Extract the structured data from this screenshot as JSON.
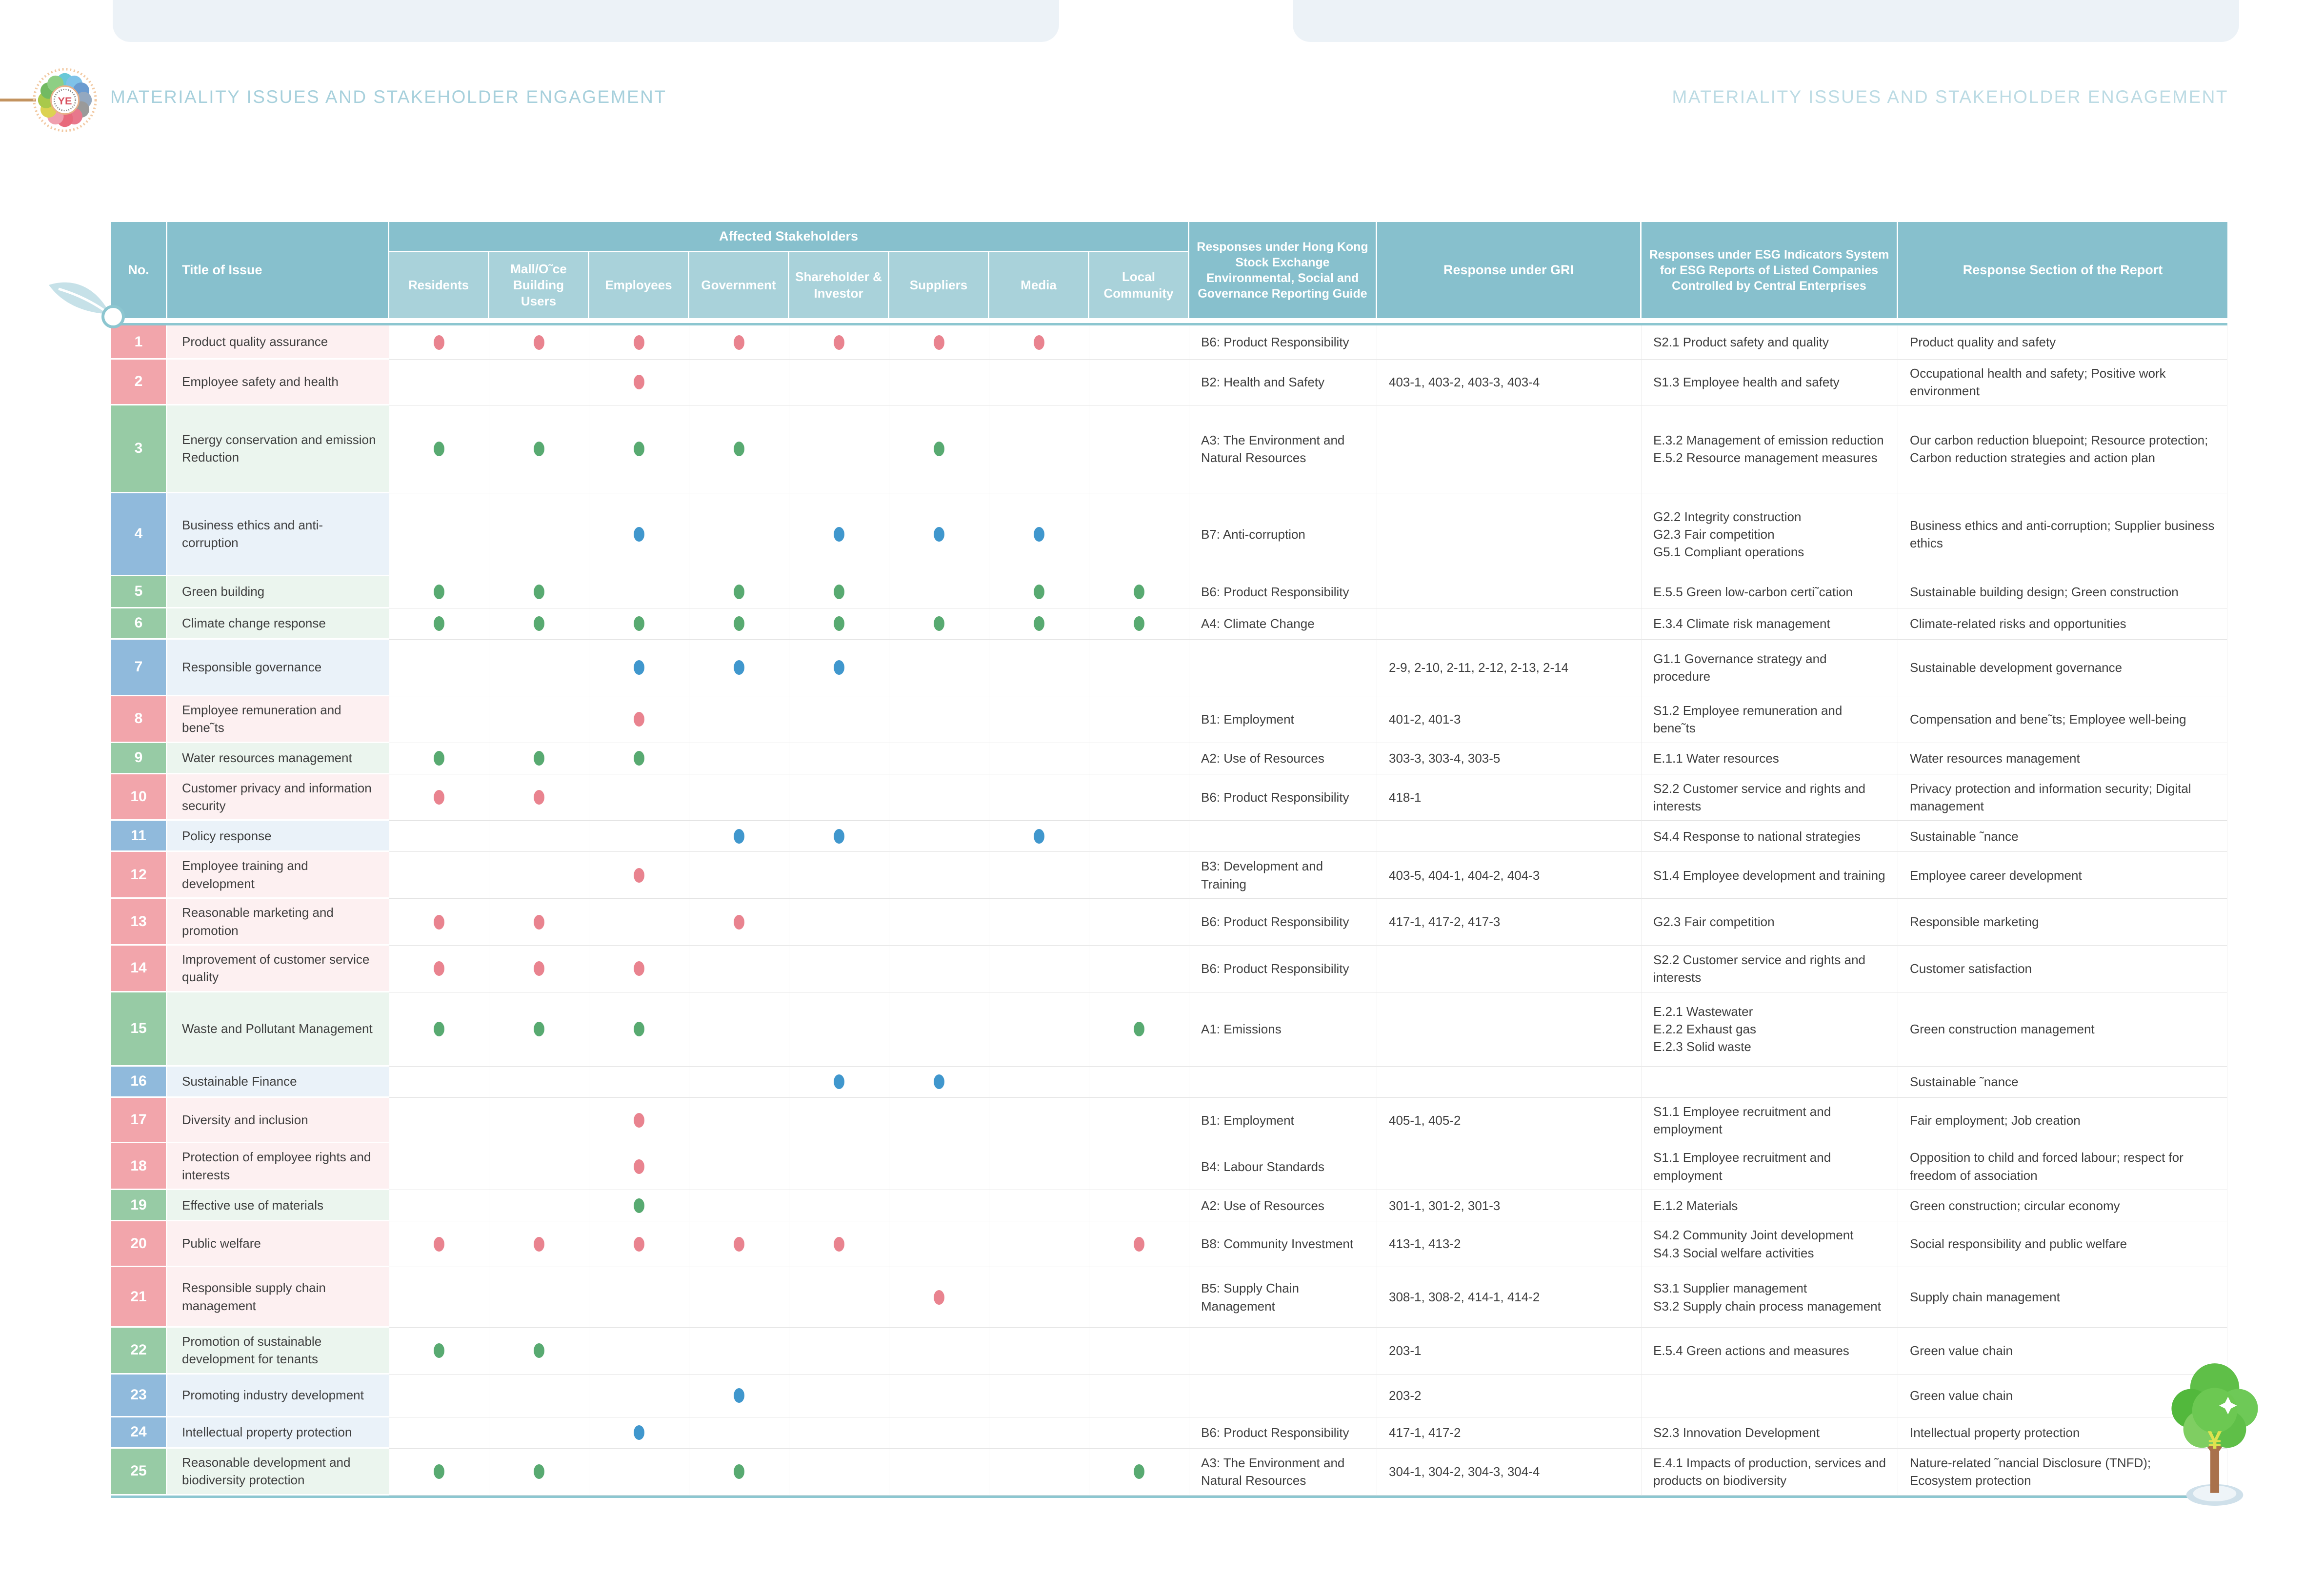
{
  "page": {
    "header_title_left": "MATERIALITY ISSUES AND STAKEHOLDER ENGAGEMENT",
    "header_title_right": "MATERIALITY ISSUES AND STAKEHOLDER ENGAGEMENT"
  },
  "colors": {
    "header_teal": "#87c0cd",
    "subheader_teal": "#a9d2da",
    "rule_teal": "#8cc6d0",
    "red_row": "#f2a5ab",
    "green_row": "#97cba5",
    "blue_row": "#90badc",
    "red_dot": "#e9838f",
    "green_dot": "#58aa71",
    "blue_dot": "#4097cd",
    "title_text": "#a7d0dc",
    "top_card_bg": "#ecf2f7",
    "brand_line": "#c3935f"
  },
  "icons": {
    "flower": "flower-logo-icon",
    "leaf": "leaf-icon",
    "tree": "tree-icon",
    "dot": "stakeholder-dot-icon"
  },
  "table": {
    "headers": {
      "no": "No.",
      "title": "Title of Issue",
      "stakeholders_group": "Affected Stakeholders",
      "stakeholders": [
        "Residents",
        "Mall/O˜ce Building Users",
        "Employees",
        "Government",
        "Shareholder & Investor",
        "Suppliers",
        "Media",
        "Local Community"
      ],
      "hkex": "Responses under Hong Kong Stock Exchange Environmental, Social and Governance Reporting Guide",
      "gri": "Response under GRI",
      "esg": "Responses under ESG Indicators System for ESG Reports of Listed Companies Controlled by Central Enterprises",
      "section": "Response Section of the Report"
    },
    "rows": [
      {
        "no": "1",
        "color": "red",
        "h": 70,
        "title": "Product quality assurance",
        "dots": [
          1,
          1,
          1,
          1,
          1,
          1,
          1,
          0
        ],
        "hkex": "B6: Product Responsibility",
        "gri": "",
        "esg": "S2.1 Product safety and quality",
        "section": "Product quality and safety"
      },
      {
        "no": "2",
        "color": "red",
        "h": 88,
        "title": "Employee safety and health",
        "dots": [
          0,
          0,
          1,
          0,
          0,
          0,
          0,
          0
        ],
        "hkex": "B2: Health and Safety",
        "gri": "403-1, 403-2, 403-3, 403-4",
        "esg": "S1.3 Employee health and safety",
        "section": "Occupational health and safety; Positive work environment"
      },
      {
        "no": "3",
        "color": "green",
        "h": 180,
        "title": "Energy conservation and emission Reduction",
        "dots": [
          1,
          1,
          1,
          1,
          0,
          1,
          0,
          0
        ],
        "hkex": "A3: The Environment and Natural Resources",
        "gri": "",
        "esg": "E.3.2 Management of emission reduction\nE.5.2 Resource management measures",
        "section": "Our carbon reduction bluepoint; Resource protection; Carbon reduction strategies and action plan"
      },
      {
        "no": "4",
        "color": "blue",
        "h": 170,
        "title": "Business ethics and anti-corruption",
        "dots": [
          0,
          0,
          1,
          0,
          1,
          1,
          1,
          0
        ],
        "hkex": "B7: Anti-corruption",
        "gri": "",
        "esg": "G2.2 Integrity construction\nG2.3 Fair competition\nG5.1 Compliant operations",
        "section": "Business ethics and anti-corruption; Supplier business ethics"
      },
      {
        "no": "5",
        "color": "green",
        "h": 66,
        "title": "Green building",
        "dots": [
          1,
          1,
          0,
          1,
          1,
          0,
          1,
          1
        ],
        "hkex": "B6: Product Responsibility",
        "gri": "",
        "esg": "E.5.5 Green low-carbon certi˜cation",
        "section": "Sustainable building design; Green construction"
      },
      {
        "no": "6",
        "color": "green",
        "h": 64,
        "title": "Climate change response",
        "dots": [
          1,
          1,
          1,
          1,
          1,
          1,
          1,
          1
        ],
        "hkex": "A4: Climate Change",
        "gri": "",
        "esg": "E.3.4 Climate risk management",
        "section": "Climate-related risks and opportunities"
      },
      {
        "no": "7",
        "color": "blue",
        "h": 116,
        "title": "Responsible governance",
        "dots": [
          0,
          0,
          1,
          1,
          1,
          0,
          0,
          0
        ],
        "hkex": "",
        "gri": "2-9, 2-10, 2-11, 2-12, 2-13, 2-14",
        "esg": "G1.1 Governance strategy and procedure",
        "section": "Sustainable development governance"
      },
      {
        "no": "8",
        "color": "red",
        "h": 88,
        "title": "Employee remuneration and bene˜ts",
        "dots": [
          0,
          0,
          1,
          0,
          0,
          0,
          0,
          0
        ],
        "hkex": "B1: Employment",
        "gri": "401-2, 401-3",
        "esg": "S1.2 Employee remuneration and bene˜ts",
        "section": "Compensation and bene˜ts; Employee well-being"
      },
      {
        "no": "9",
        "color": "green",
        "h": 64,
        "title": "Water resources management",
        "dots": [
          1,
          1,
          1,
          0,
          0,
          0,
          0,
          0
        ],
        "hkex": "A2: Use of Resources",
        "gri": "303-3, 303-4, 303-5",
        "esg": "E.1.1 Water resources",
        "section": "Water resources management"
      },
      {
        "no": "10",
        "color": "red",
        "h": 88,
        "title": "Customer privacy and information security",
        "dots": [
          1,
          1,
          0,
          0,
          0,
          0,
          0,
          0
        ],
        "hkex": "B6: Product Responsibility",
        "gri": "418-1",
        "esg": "S2.2 Customer service and rights and interests",
        "section": "Privacy protection and information security; Digital management"
      },
      {
        "no": "11",
        "color": "blue",
        "h": 64,
        "title": "Policy response",
        "dots": [
          0,
          0,
          0,
          1,
          1,
          0,
          1,
          0
        ],
        "hkex": "",
        "gri": "",
        "esg": "S4.4 Response to national strategies",
        "section": "Sustainable ˜nance"
      },
      {
        "no": "12",
        "color": "red",
        "h": 88,
        "title": "Employee training and development",
        "dots": [
          0,
          0,
          1,
          0,
          0,
          0,
          0,
          0
        ],
        "hkex": "B3: Development and Training",
        "gri": "403-5, 404-1, 404-2, 404-3",
        "esg": "S1.4 Employee development and training",
        "section": "Employee career development"
      },
      {
        "no": "13",
        "color": "red",
        "h": 88,
        "title": "Reasonable marketing and promotion",
        "dots": [
          1,
          1,
          0,
          1,
          0,
          0,
          0,
          0
        ],
        "hkex": "B6: Product Responsibility",
        "gri": "417-1, 417-2, 417-3",
        "esg": "G2.3 Fair competition",
        "section": "Responsible marketing"
      },
      {
        "no": "14",
        "color": "red",
        "h": 88,
        "title": "Improvement of customer service quality",
        "dots": [
          1,
          1,
          1,
          0,
          0,
          0,
          0,
          0
        ],
        "hkex": "B6: Product Responsibility",
        "gri": "",
        "esg": "S2.2 Customer service and rights and interests",
        "section": "Customer satisfaction"
      },
      {
        "no": "15",
        "color": "green",
        "h": 152,
        "title": "Waste and Pollutant Management",
        "dots": [
          1,
          1,
          1,
          0,
          0,
          0,
          0,
          1
        ],
        "hkex": "A1: Emissions",
        "gri": "",
        "esg": "E.2.1 Wastewater\nE.2.2 Exhaust gas\nE.2.3 Solid waste",
        "section": "Green construction management"
      },
      {
        "no": "16",
        "color": "blue",
        "h": 64,
        "title": "Sustainable Finance",
        "dots": [
          0,
          0,
          0,
          0,
          1,
          1,
          0,
          0
        ],
        "hkex": "",
        "gri": "",
        "esg": "",
        "section": "Sustainable ˜nance"
      },
      {
        "no": "17",
        "color": "red",
        "h": 88,
        "title": "Diversity and inclusion",
        "dots": [
          0,
          0,
          1,
          0,
          0,
          0,
          0,
          0
        ],
        "hkex": "B1: Employment",
        "gri": "405-1, 405-2",
        "esg": "S1.1 Employee recruitment and employment",
        "section": "Fair employment; Job creation"
      },
      {
        "no": "18",
        "color": "red",
        "h": 88,
        "title": "Protection of employee rights and interests",
        "dots": [
          0,
          0,
          1,
          0,
          0,
          0,
          0,
          0
        ],
        "hkex": "B4: Labour Standards",
        "gri": "",
        "esg": "S1.1 Employee recruitment and employment",
        "section": "Opposition to child and forced labour; respect for freedom of association"
      },
      {
        "no": "19",
        "color": "green",
        "h": 64,
        "title": "Effective use of materials",
        "dots": [
          0,
          0,
          1,
          0,
          0,
          0,
          0,
          0
        ],
        "hkex": "A2: Use of Resources",
        "gri": "301-1, 301-2, 301-3",
        "esg": "E.1.2 Materials",
        "section": "Green construction; circular economy"
      },
      {
        "no": "20",
        "color": "red",
        "h": 88,
        "title": "Public welfare",
        "dots": [
          1,
          1,
          1,
          1,
          1,
          0,
          0,
          1
        ],
        "hkex": "B8: Community Investment",
        "gri": "413-1, 413-2",
        "esg": "S4.2 Community Joint development\nS4.3 Social welfare activities",
        "section": "Social responsibility and public welfare"
      },
      {
        "no": "21",
        "color": "red",
        "h": 124,
        "title": "Responsible supply chain management",
        "dots": [
          0,
          0,
          0,
          0,
          0,
          1,
          0,
          0
        ],
        "hkex": "B5: Supply Chain Management",
        "gri": "308-1, 308-2, 414-1, 414-2",
        "esg": "S3.1 Supplier management\nS3.2 Supply chain process management",
        "section": "Supply chain management"
      },
      {
        "no": "22",
        "color": "green",
        "h": 88,
        "title": "Promotion of sustainable development for tenants",
        "dots": [
          1,
          1,
          0,
          0,
          0,
          0,
          0,
          0
        ],
        "hkex": "",
        "gri": "203-1",
        "esg": "E.5.4 Green actions and measures",
        "section": "Green value chain"
      },
      {
        "no": "23",
        "color": "blue",
        "h": 88,
        "title": "Promoting industry development",
        "dots": [
          0,
          0,
          0,
          1,
          0,
          0,
          0,
          0
        ],
        "hkex": "",
        "gri": "203-2",
        "esg": "",
        "section": "Green value chain"
      },
      {
        "no": "24",
        "color": "blue",
        "h": 64,
        "title": "Intellectual property protection",
        "dots": [
          0,
          0,
          1,
          0,
          0,
          0,
          0,
          0
        ],
        "hkex": "B6: Product Responsibility",
        "gri": "417-1, 417-2",
        "esg": "S2.3 Innovation Development",
        "section": "Intellectual property protection"
      },
      {
        "no": "25",
        "color": "green",
        "h": 88,
        "title": "Reasonable development and biodiversity protection",
        "dots": [
          1,
          1,
          0,
          1,
          0,
          0,
          0,
          1
        ],
        "hkex": "A3: The Environment and Natural Resources",
        "gri": "304-1, 304-2, 304-3, 304-4",
        "esg": "E.4.1 Impacts of production, services and products on biodiversity",
        "section": "Nature-related ˜nancial Disclosure (TNFD); Ecosystem protection"
      }
    ]
  }
}
